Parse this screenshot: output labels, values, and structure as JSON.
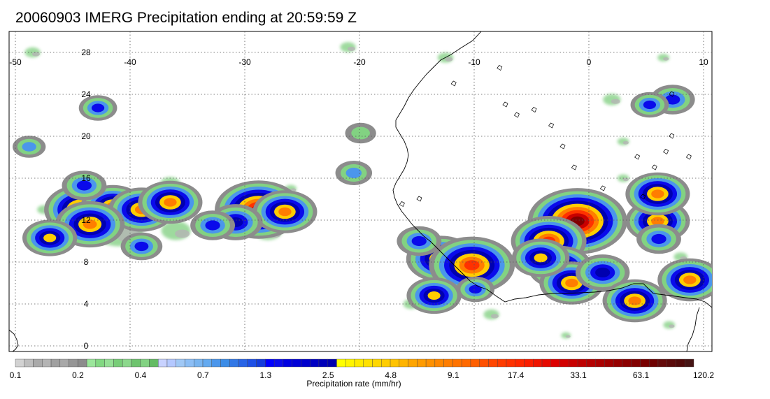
{
  "title": "20060903 IMERG Precipitation ending at 20:59:59 Z",
  "map": {
    "lon_range": [
      -50,
      10
    ],
    "lat_range": [
      0,
      30
    ],
    "lon_ticks": [
      -50,
      -40,
      -30,
      -20,
      -10,
      0,
      10
    ],
    "lon_tick_labels": [
      "-50",
      "-40",
      "-30",
      "-20",
      "-10",
      "0",
      "10"
    ],
    "lat_ticks": [
      0,
      4,
      8,
      12,
      16,
      20,
      24,
      28
    ],
    "lat_tick_labels": [
      "0",
      "4",
      "8",
      "12",
      "16",
      "20",
      "24",
      "28"
    ],
    "gridlines": "dotted"
  },
  "colorbar": {
    "title": "Precipitation rate (mm/hr)",
    "tick_labels": [
      "0.1",
      "0.2",
      "0.4",
      "0.7",
      "1.3",
      "2.5",
      "4.8",
      "9.1",
      "17.4",
      "33.1",
      "63.1",
      "120.2"
    ],
    "colors": [
      "#d2d2d2",
      "#bebebe",
      "#aaaaaa",
      "#b4b4b4",
      "#a0a0a0",
      "#a8a8a8",
      "#969696",
      "#8c8c8c",
      "#9be69b",
      "#82d882",
      "#96e096",
      "#78cd78",
      "#8cd88c",
      "#6ec46e",
      "#82d282",
      "#64bb64",
      "#c8d2ff",
      "#b4c8ff",
      "#a0c8f5",
      "#8cbef5",
      "#78b4f0",
      "#64aaf0",
      "#4b96eb",
      "#3c8ce6",
      "#3278e6",
      "#2864e6",
      "#1e50e6",
      "#143cdc",
      "#0000ff",
      "#0a0aeb",
      "#0000e1",
      "#0000d7",
      "#0000cd",
      "#0000c3",
      "#0000b9",
      "#0000af",
      "#ffff00",
      "#fff500",
      "#ffeb00",
      "#ffe100",
      "#ffd700",
      "#ffcd00",
      "#ffc300",
      "#ffb400",
      "#ffa500",
      "#ff9b00",
      "#ff9100",
      "#ff8700",
      "#ff7d00",
      "#ff7300",
      "#ff6900",
      "#ff5f00",
      "#ff5000",
      "#ff4600",
      "#ff3c00",
      "#ff3200",
      "#ff2800",
      "#fa1e00",
      "#f01400",
      "#e60a00",
      "#dc0000",
      "#d20000",
      "#c80000",
      "#be0000",
      "#b40000",
      "#aa0000",
      "#a00000",
      "#960000",
      "#8c0000",
      "#820000",
      "#780000",
      "#6e0000",
      "#640a0a",
      "#5a0a0a",
      "#500a0a",
      "#461414"
    ]
  },
  "precip_cells": [
    {
      "lon": -44.2,
      "lat": 13.0,
      "peak": 17.0
    },
    {
      "lon": -41.5,
      "lat": 13.3,
      "peak": 9.0
    },
    {
      "lon": -39.0,
      "lat": 13.0,
      "peak": 10.0
    },
    {
      "lon": -36.5,
      "lat": 13.7,
      "peak": 9.0
    },
    {
      "lon": -43.5,
      "lat": 11.6,
      "peak": 12.0
    },
    {
      "lon": -47.0,
      "lat": 10.3,
      "peak": 5.0
    },
    {
      "lon": -44.0,
      "lat": 15.3,
      "peak": 2.5
    },
    {
      "lon": -42.8,
      "lat": 22.7,
      "peak": 1.5
    },
    {
      "lon": -48.8,
      "lat": 19.0,
      "peak": 0.9
    },
    {
      "lon": -39.0,
      "lat": 9.5,
      "peak": 2.0
    },
    {
      "lon": -28.8,
      "lat": 13.0,
      "peak": 33.0
    },
    {
      "lon": -26.5,
      "lat": 12.8,
      "peak": 9.0
    },
    {
      "lon": -30.8,
      "lat": 11.8,
      "peak": 4.8
    },
    {
      "lon": -32.8,
      "lat": 11.5,
      "peak": 2.5
    },
    {
      "lon": -20.5,
      "lat": 16.5,
      "peak": 1.3
    },
    {
      "lon": -19.9,
      "lat": 20.3,
      "peak": 0.7
    },
    {
      "lon": -12.9,
      "lat": 8.3,
      "peak": 12.0
    },
    {
      "lon": -10.2,
      "lat": 7.7,
      "peak": 30.0
    },
    {
      "lon": -13.5,
      "lat": 4.8,
      "peak": 5.0
    },
    {
      "lon": -9.9,
      "lat": 5.4,
      "peak": 1.5
    },
    {
      "lon": -14.8,
      "lat": 10.0,
      "peak": 2.5
    },
    {
      "lon": -1.0,
      "lat": 11.9,
      "peak": 63.0
    },
    {
      "lon": -3.5,
      "lat": 10.0,
      "peak": 17.0
    },
    {
      "lon": -2.5,
      "lat": 7.5,
      "peak": 9.0
    },
    {
      "lon": -1.5,
      "lat": 6.0,
      "peak": 9.0
    },
    {
      "lon": -4.2,
      "lat": 8.4,
      "peak": 6.0
    },
    {
      "lon": 1.2,
      "lat": 7.0,
      "peak": 4.8
    },
    {
      "lon": 4.0,
      "lat": 4.3,
      "peak": 9.0
    },
    {
      "lon": 6.0,
      "lat": 11.9,
      "peak": 9.0
    },
    {
      "lon": 6.0,
      "lat": 14.5,
      "peak": 9.0
    },
    {
      "lon": 8.8,
      "lat": 6.3,
      "peak": 9.0
    },
    {
      "lon": 7.3,
      "lat": 23.5,
      "peak": 2.5
    },
    {
      "lon": 5.3,
      "lat": 23.0,
      "peak": 1.5
    },
    {
      "lon": 6.1,
      "lat": 10.2,
      "peak": 2.5
    }
  ],
  "light_rain": [
    {
      "lon": -41.0,
      "lat": 11.0,
      "r": 2.5
    },
    {
      "lon": -36.0,
      "lat": 11.0,
      "r": 1.5
    },
    {
      "lon": -28.0,
      "lat": 11.0,
      "r": 1.5
    },
    {
      "lon": -36.5,
      "lat": 15.5,
      "r": 1.0
    },
    {
      "lon": -48.5,
      "lat": 28.0,
      "r": 0.8
    },
    {
      "lon": -21.0,
      "lat": 28.5,
      "r": 0.8
    },
    {
      "lon": -15.5,
      "lat": 4.0,
      "r": 0.8
    },
    {
      "lon": -8.5,
      "lat": 3.0,
      "r": 0.8
    },
    {
      "lon": 3.0,
      "lat": 16.0,
      "r": 0.6
    },
    {
      "lon": 3.0,
      "lat": 19.5,
      "r": 0.6
    },
    {
      "lon": -12.5,
      "lat": 27.5,
      "r": 0.8
    },
    {
      "lon": 6.5,
      "lat": 27.5,
      "r": 0.6
    },
    {
      "lon": 2.0,
      "lat": 23.5,
      "r": 0.9
    },
    {
      "lon": -47.5,
      "lat": 13.0,
      "r": 0.7
    },
    {
      "lon": -44.5,
      "lat": 16.0,
      "r": 0.7
    },
    {
      "lon": -26.0,
      "lat": 15.0,
      "r": 0.6
    },
    {
      "lon": -26.8,
      "lat": 11.3,
      "r": 0.6
    },
    {
      "lon": -2.0,
      "lat": 1.0,
      "r": 0.5
    },
    {
      "lon": 7.0,
      "lat": 2.0,
      "r": 0.6
    },
    {
      "lon": 8.0,
      "lat": 8.5,
      "r": 0.7
    }
  ]
}
